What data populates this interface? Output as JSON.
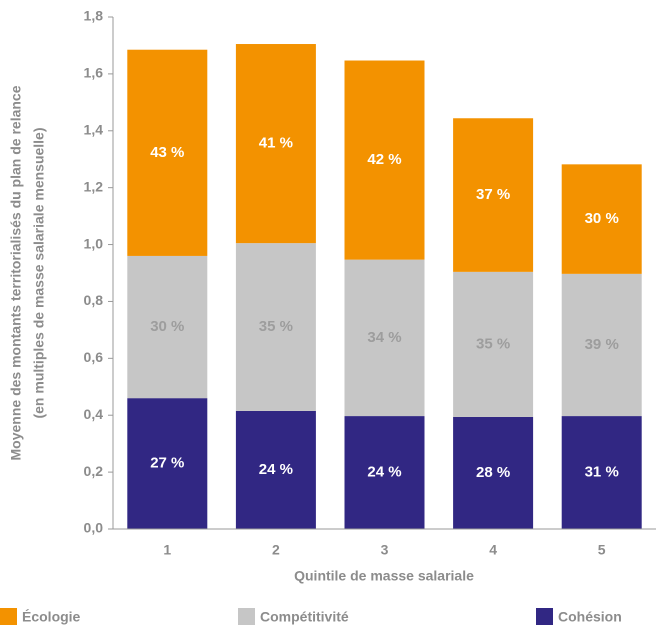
{
  "chart_data": {
    "type": "stacked-bar",
    "y_axis_title": [
      "Moyenne des montants territorialisés du plan de relance",
      "(en multiples de masse salariale mensuelle)"
    ],
    "x_axis_title": "Quintile de masse salariale",
    "categories": [
      "1",
      "2",
      "3",
      "4",
      "5"
    ],
    "series": [
      {
        "name": "Cohésion",
        "color": "#312783",
        "label_color": "#ffffff",
        "values": [
          0.46,
          0.415,
          0.397,
          0.394,
          0.397
        ],
        "share_labels": [
          "27 %",
          "24 %",
          "24 %",
          "28 %",
          "31 %"
        ]
      },
      {
        "name": "Compétitivité",
        "color": "#c6c6c6",
        "label_color": "#9d9d9d",
        "values": [
          0.5,
          0.59,
          0.55,
          0.51,
          0.5
        ],
        "share_labels": [
          "30 %",
          "35 %",
          "34 %",
          "35 %",
          "39 %"
        ]
      },
      {
        "name": "Écologie",
        "color": "#f39200",
        "label_color": "#ffffff",
        "values": [
          0.725,
          0.7,
          0.7,
          0.54,
          0.385
        ],
        "share_labels": [
          "43 %",
          "41 %",
          "42 %",
          "37 %",
          "30 %"
        ]
      }
    ],
    "legend_order": [
      2,
      1,
      0
    ],
    "ylim": [
      0,
      1.8
    ],
    "yticks": [
      {
        "value": 0,
        "label": "0,0"
      },
      {
        "value": 0.2,
        "label": "0,2"
      },
      {
        "value": 0.4,
        "label": "0,4"
      },
      {
        "value": 0.6,
        "label": "0,6"
      },
      {
        "value": 0.8,
        "label": "0,8"
      },
      {
        "value": 1.0,
        "label": "1,0"
      },
      {
        "value": 1.2,
        "label": "1,2"
      },
      {
        "value": 1.4,
        "label": "1,4"
      },
      {
        "value": 1.6,
        "label": "1,6"
      },
      {
        "value": 1.8,
        "label": "1,8"
      }
    ],
    "grid": false
  }
}
